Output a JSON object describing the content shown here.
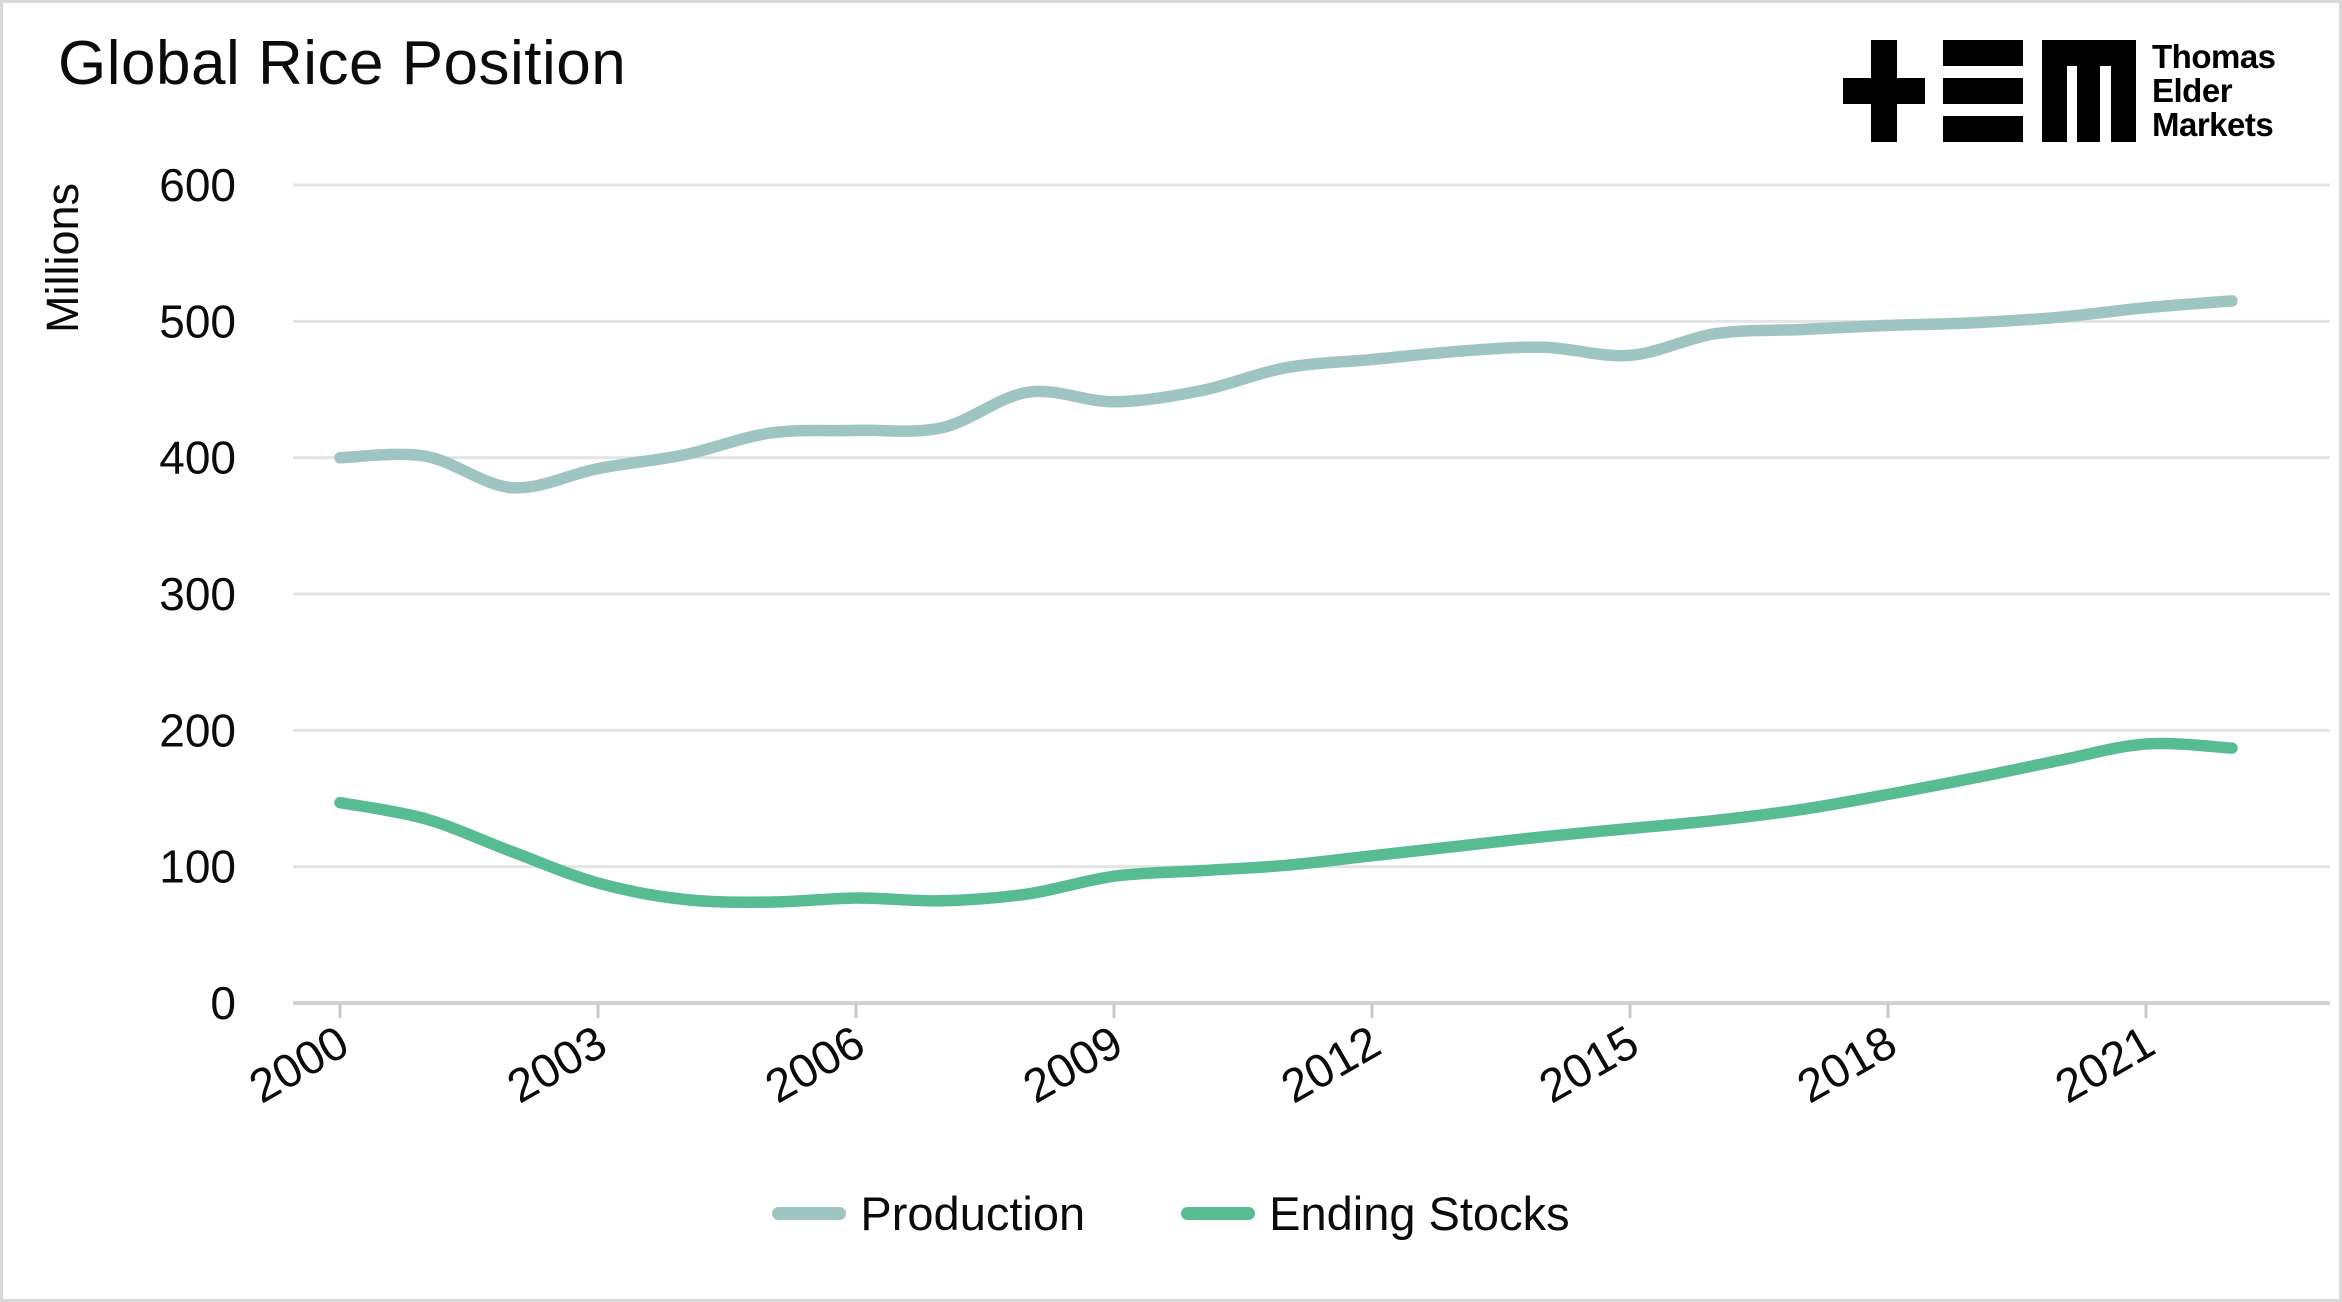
{
  "title": "Global Rice Position",
  "logo": {
    "line1": "Thomas",
    "line2": "Elder",
    "line3": "Markets"
  },
  "y_axis": {
    "label": "Millions",
    "tick_labels": [
      "0",
      "100",
      "200",
      "300",
      "400",
      "500",
      "600"
    ],
    "tick_values": [
      0,
      100,
      200,
      300,
      400,
      500,
      600
    ]
  },
  "x_axis": {
    "tick_labels": [
      "2000",
      "2003",
      "2006",
      "2009",
      "2012",
      "2015",
      "2018",
      "2021"
    ],
    "tick_values": [
      2000,
      2003,
      2006,
      2009,
      2012,
      2015,
      2018,
      2021
    ]
  },
  "legend": [
    {
      "label": "Production",
      "color": "#9ec5c2"
    },
    {
      "label": "Ending Stocks",
      "color": "#58bc93"
    }
  ],
  "colors": {
    "production_line": "#9ec5c2",
    "ending_stocks_line": "#58bc93",
    "gridline": "#e4e4e4",
    "axis_line": "#d2d2d2",
    "tick_mark": "#c8c8c8",
    "text": "#0b0b0b",
    "background": "#ffffff",
    "frame_border": "#d9d9d9"
  },
  "chart_data": {
    "type": "line",
    "title": "Global Rice Position",
    "xlabel": "",
    "ylabel": "Millions",
    "ylim": [
      0,
      600
    ],
    "grid": "horizontal",
    "legend_position": "bottom-center",
    "x": [
      2000,
      2001,
      2002,
      2003,
      2004,
      2005,
      2006,
      2007,
      2008,
      2009,
      2010,
      2011,
      2012,
      2013,
      2014,
      2015,
      2016,
      2017,
      2018,
      2019,
      2020,
      2021,
      2022
    ],
    "series": [
      {
        "name": "Production",
        "color": "#9ec5c2",
        "values": [
          400,
          401,
          378,
          392,
          402,
          418,
          420,
          422,
          448,
          441,
          449,
          466,
          472,
          478,
          481,
          475,
          491,
          494,
          497,
          499,
          503,
          510,
          515
        ]
      },
      {
        "name": "Ending Stocks",
        "color": "#58bc93",
        "values": [
          147,
          135,
          111,
          88,
          76,
          74,
          77,
          75,
          80,
          93,
          97,
          101,
          108,
          115,
          122,
          128,
          134,
          142,
          153,
          165,
          178,
          190,
          187
        ]
      }
    ]
  }
}
